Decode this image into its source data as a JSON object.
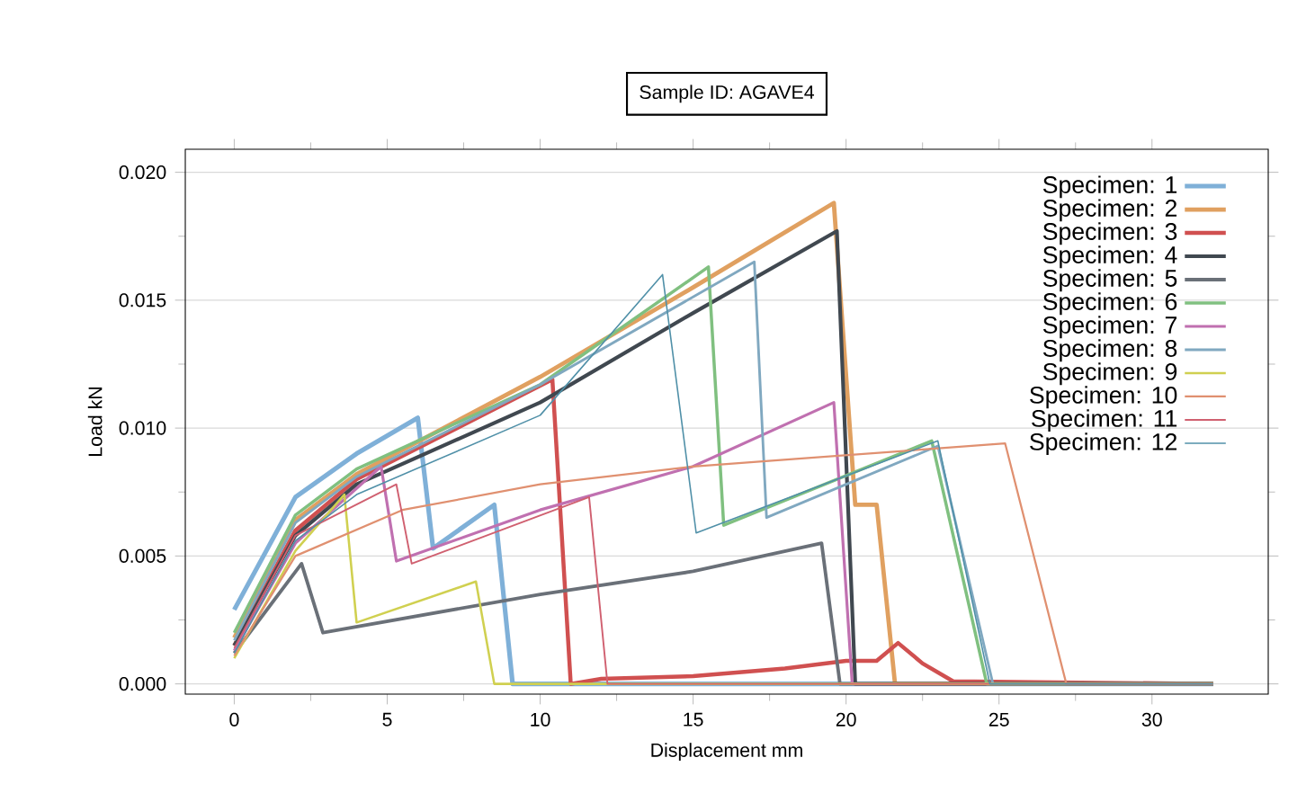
{
  "chart_data": {
    "type": "line",
    "title": "Sample ID: AGAVE4",
    "xlabel": "Displacement mm",
    "ylabel": "Load kN",
    "xlim": [
      -1.6,
      33.8
    ],
    "ylim": [
      -0.0004,
      0.0209
    ],
    "xticks": [
      0,
      5,
      10,
      15,
      20,
      25,
      30
    ],
    "yticks": [
      {
        "value": 0,
        "label": "0.000"
      },
      {
        "value": 0.005,
        "label": "0.005"
      },
      {
        "value": 0.01,
        "label": "0.010"
      },
      {
        "value": 0.015,
        "label": "0.015"
      },
      {
        "value": 0.02,
        "label": "0.020"
      }
    ],
    "grid": "y",
    "legend": "top right",
    "marker": "none",
    "line_style": "solid",
    "series": [
      {
        "name": "Specimen: 1",
        "color": "#7fb0d8",
        "x": [
          0,
          2,
          4,
          6.0,
          6.5,
          8.5,
          9.1,
          32
        ],
        "values": [
          0.0029,
          0.0073,
          0.009,
          0.0104,
          0.0053,
          0.007,
          0.0,
          0.0
        ]
      },
      {
        "name": "Specimen: 2",
        "color": "#e0a060",
        "x": [
          0,
          2,
          4,
          10,
          15,
          19.6,
          20.3,
          21,
          21.6,
          32
        ],
        "values": [
          0.0018,
          0.0064,
          0.0082,
          0.012,
          0.0155,
          0.0188,
          0.007,
          0.007,
          0.0,
          0.0
        ]
      },
      {
        "name": "Specimen: 3",
        "color": "#d05050",
        "x": [
          0,
          2,
          4,
          10.4,
          11.0,
          12,
          15,
          18,
          20,
          21,
          21.7,
          22.5,
          23.5,
          32
        ],
        "values": [
          0.0015,
          0.006,
          0.008,
          0.0119,
          0.0,
          0.0002,
          0.0003,
          0.0006,
          0.0009,
          0.0009,
          0.0016,
          0.0008,
          0.0001,
          0.0
        ]
      },
      {
        "name": "Specimen: 4",
        "color": "#404850",
        "x": [
          0,
          2,
          4,
          10,
          15,
          19.7,
          20.3,
          32
        ],
        "values": [
          0.0015,
          0.0058,
          0.0078,
          0.011,
          0.0145,
          0.0177,
          0.0,
          0.0
        ]
      },
      {
        "name": "Specimen: 5",
        "color": "#6a7078",
        "x": [
          0,
          2.2,
          2.9,
          10,
          15,
          19.2,
          19.8,
          32
        ],
        "values": [
          0.0012,
          0.0047,
          0.002,
          0.0035,
          0.0044,
          0.0055,
          0.0,
          0.0
        ]
      },
      {
        "name": "Specimen: 6",
        "color": "#80c080",
        "x": [
          0,
          2,
          4,
          10,
          15.5,
          16.0,
          22.8,
          24.6,
          32
        ],
        "values": [
          0.002,
          0.0066,
          0.0084,
          0.0117,
          0.0163,
          0.0062,
          0.0095,
          0.0,
          0.0
        ]
      },
      {
        "name": "Specimen: 7",
        "color": "#c070b0",
        "x": [
          0,
          2,
          4.8,
          5.3,
          10,
          15,
          19.6,
          20.2,
          32
        ],
        "values": [
          0.0013,
          0.0055,
          0.0085,
          0.0048,
          0.0068,
          0.0085,
          0.011,
          0.0,
          0.0
        ]
      },
      {
        "name": "Specimen: 8",
        "color": "#80a8c0",
        "x": [
          0,
          2,
          4,
          10,
          17,
          17.4,
          23,
          24.8,
          32
        ],
        "values": [
          0.0017,
          0.0063,
          0.0081,
          0.0117,
          0.0165,
          0.0065,
          0.0093,
          0.0,
          0.0
        ]
      },
      {
        "name": "Specimen: 9",
        "color": "#d0d050",
        "x": [
          0,
          2,
          3.6,
          4.0,
          7.9,
          8.5,
          32
        ],
        "values": [
          0.001,
          0.0052,
          0.0074,
          0.0024,
          0.004,
          0.0,
          0.0
        ]
      },
      {
        "name": "Specimen: 10",
        "color": "#e09070",
        "x": [
          0,
          2,
          5.5,
          10,
          15,
          25.2,
          27.2,
          32
        ],
        "values": [
          0.0011,
          0.005,
          0.0068,
          0.0078,
          0.0085,
          0.0094,
          0.0,
          0.0
        ]
      },
      {
        "name": "Specimen: 11",
        "color": "#d06070",
        "x": [
          0,
          2,
          5.3,
          5.8,
          11.6,
          12.2,
          32
        ],
        "values": [
          0.0014,
          0.0058,
          0.0078,
          0.0047,
          0.0073,
          0.0,
          0.0
        ]
      },
      {
        "name": "Specimen: 12",
        "color": "#5090a8",
        "x": [
          0,
          2,
          4,
          10,
          14,
          15.1,
          23,
          24.7,
          32
        ],
        "values": [
          0.0012,
          0.0056,
          0.0074,
          0.0105,
          0.016,
          0.0059,
          0.0095,
          0.0,
          0.0
        ]
      }
    ]
  }
}
